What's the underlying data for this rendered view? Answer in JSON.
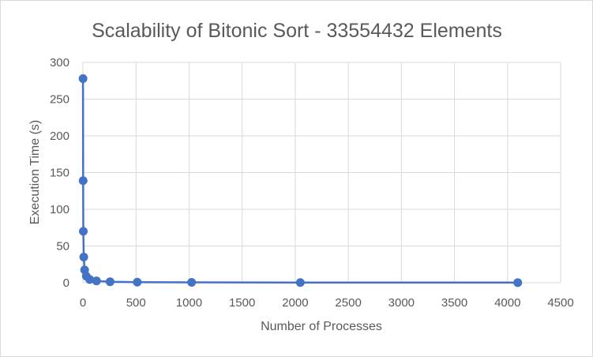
{
  "chart_data": {
    "type": "scatter",
    "title": "Scalability of Bitonic Sort - 33554432 Elements",
    "xlabel": "Number of Processes",
    "ylabel": "Execution Time (s)",
    "xlim": [
      0,
      4500
    ],
    "ylim": [
      0,
      300
    ],
    "x_ticks": [
      0,
      500,
      1000,
      1500,
      2000,
      2500,
      3000,
      3500,
      4000,
      4500
    ],
    "y_ticks": [
      0,
      50,
      100,
      150,
      200,
      250,
      300
    ],
    "grid": true,
    "legend": "none",
    "series": [
      {
        "x": [
          1,
          2,
          4,
          8,
          16,
          32,
          64,
          128,
          256,
          512,
          1024,
          2048,
          4096
        ],
        "y": [
          278,
          139,
          70,
          35,
          17.5,
          9,
          4.5,
          2.5,
          1.4,
          0.8,
          0.5,
          0.3,
          0.2
        ],
        "color": "#4472c4"
      }
    ]
  }
}
